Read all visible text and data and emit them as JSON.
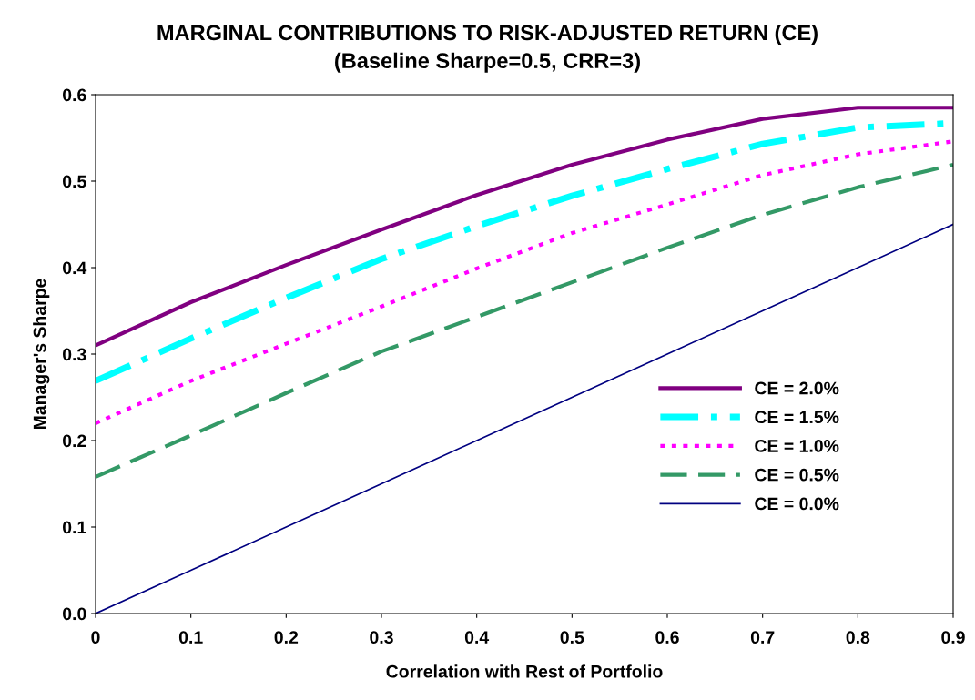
{
  "chart_data": {
    "type": "line",
    "title": "MARGINAL CONTRIBUTIONS TO RISK-ADJUSTED RETURN (CE)",
    "subtitle": "(Baseline Sharpe=0.5, CRR=3)",
    "xlabel": "Correlation with Rest of Portfolio",
    "ylabel": "Manager's Sharpe",
    "x": [
      0,
      0.1,
      0.2,
      0.3,
      0.4,
      0.5,
      0.6,
      0.7,
      0.8,
      0.9
    ],
    "series": [
      {
        "name": "CE = 2.0%",
        "color": "#800080",
        "line_style": "solid",
        "values": [
          0.31,
          0.36,
          0.403,
          0.444,
          0.484,
          0.519,
          0.548,
          0.572,
          0.585,
          0.585
        ]
      },
      {
        "name": "CE = 1.5%",
        "color": "#00ffff",
        "line_style": "dashdot",
        "values": [
          0.269,
          0.318,
          0.365,
          0.41,
          0.448,
          0.483,
          0.514,
          0.543,
          0.562,
          0.567
        ]
      },
      {
        "name": "CE = 1.0%",
        "color": "#ff00ff",
        "line_style": "dotted",
        "values": [
          0.22,
          0.269,
          0.312,
          0.355,
          0.399,
          0.44,
          0.473,
          0.507,
          0.531,
          0.546
        ]
      },
      {
        "name": "CE = 0.5%",
        "color": "#339966",
        "line_style": "dashed",
        "values": [
          0.158,
          0.206,
          0.255,
          0.303,
          0.343,
          0.383,
          0.423,
          0.461,
          0.493,
          0.519
        ]
      },
      {
        "name": "CE = 0.0%",
        "color": "#000080",
        "line_style": "solid",
        "values": [
          0,
          0.05,
          0.1,
          0.15,
          0.2,
          0.25,
          0.3,
          0.35,
          0.4,
          0.45
        ]
      }
    ],
    "xlim": [
      0,
      0.9
    ],
    "xticks": [
      0,
      0.1,
      0.2,
      0.3,
      0.4,
      0.5,
      0.6,
      0.7,
      0.8,
      0.9
    ],
    "ylim": [
      0,
      0.6
    ],
    "yticks": [
      {
        "value": 0,
        "label": "0.0"
      },
      0.1,
      0.2,
      0.3,
      0.4,
      0.5,
      0.6
    ],
    "grid": false,
    "legend": "right",
    "marker": "none"
  }
}
